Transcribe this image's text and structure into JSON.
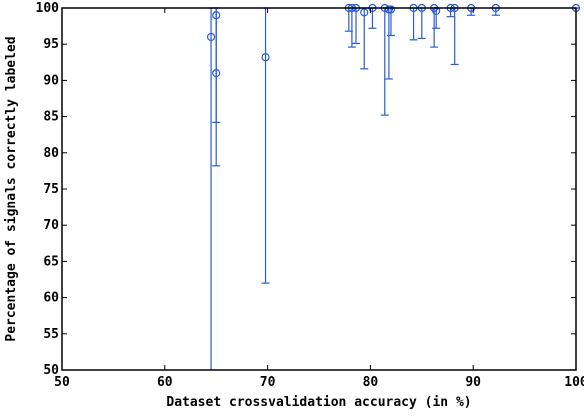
{
  "chart_data": {
    "type": "scatter",
    "title": "",
    "xlabel": "Dataset crossvalidation accuracy (in %)",
    "ylabel": "Percentage of signals correctly labeled",
    "xlim": [
      50,
      100
    ],
    "ylim": [
      50,
      100
    ],
    "xticks": [
      50,
      60,
      70,
      80,
      90,
      100
    ],
    "yticks": [
      50,
      55,
      60,
      65,
      70,
      75,
      80,
      85,
      90,
      95,
      100
    ],
    "reference_line": {
      "y": 100,
      "style": "dashed",
      "color": "#000000"
    },
    "grid": false,
    "legend": "none",
    "series_color": "#2a5bd7",
    "points": [
      {
        "x": 64.5,
        "y": 96.0,
        "lower": 50.0,
        "upper": 100.0
      },
      {
        "x": 65.0,
        "y": 99.0,
        "lower": 84.2,
        "upper": 100.0
      },
      {
        "x": 65.0,
        "y": 91.0,
        "lower": 78.2,
        "upper": 100.0
      },
      {
        "x": 69.8,
        "y": 93.2,
        "lower": 62.0,
        "upper": 100.0
      },
      {
        "x": 77.9,
        "y": 100.0,
        "lower": 96.8,
        "upper": 100.0
      },
      {
        "x": 78.2,
        "y": 100.0,
        "lower": 94.6,
        "upper": 100.0
      },
      {
        "x": 78.6,
        "y": 100.0,
        "lower": 95.1,
        "upper": 100.0
      },
      {
        "x": 79.4,
        "y": 99.4,
        "lower": 91.6,
        "upper": 100.0
      },
      {
        "x": 80.2,
        "y": 100.0,
        "lower": 97.2,
        "upper": 100.0
      },
      {
        "x": 81.4,
        "y": 100.0,
        "lower": 85.2,
        "upper": 100.0
      },
      {
        "x": 81.8,
        "y": 99.8,
        "lower": 90.2,
        "upper": 100.0
      },
      {
        "x": 82.0,
        "y": 99.8,
        "lower": 96.2,
        "upper": 100.0
      },
      {
        "x": 84.2,
        "y": 100.0,
        "lower": 95.6,
        "upper": 100.0
      },
      {
        "x": 85.0,
        "y": 100.0,
        "lower": 95.8,
        "upper": 100.0
      },
      {
        "x": 86.2,
        "y": 100.0,
        "lower": 94.6,
        "upper": 100.0
      },
      {
        "x": 86.4,
        "y": 99.6,
        "lower": 97.2,
        "upper": 100.0
      },
      {
        "x": 87.8,
        "y": 100.0,
        "lower": 98.8,
        "upper": 100.0
      },
      {
        "x": 88.2,
        "y": 100.0,
        "lower": 92.2,
        "upper": 100.0
      },
      {
        "x": 89.8,
        "y": 100.0,
        "lower": 99.0,
        "upper": 100.0
      },
      {
        "x": 92.2,
        "y": 100.0,
        "lower": 99.0,
        "upper": 100.0
      },
      {
        "x": 100.0,
        "y": 100.0,
        "lower": 100.0,
        "upper": 100.0
      }
    ]
  }
}
